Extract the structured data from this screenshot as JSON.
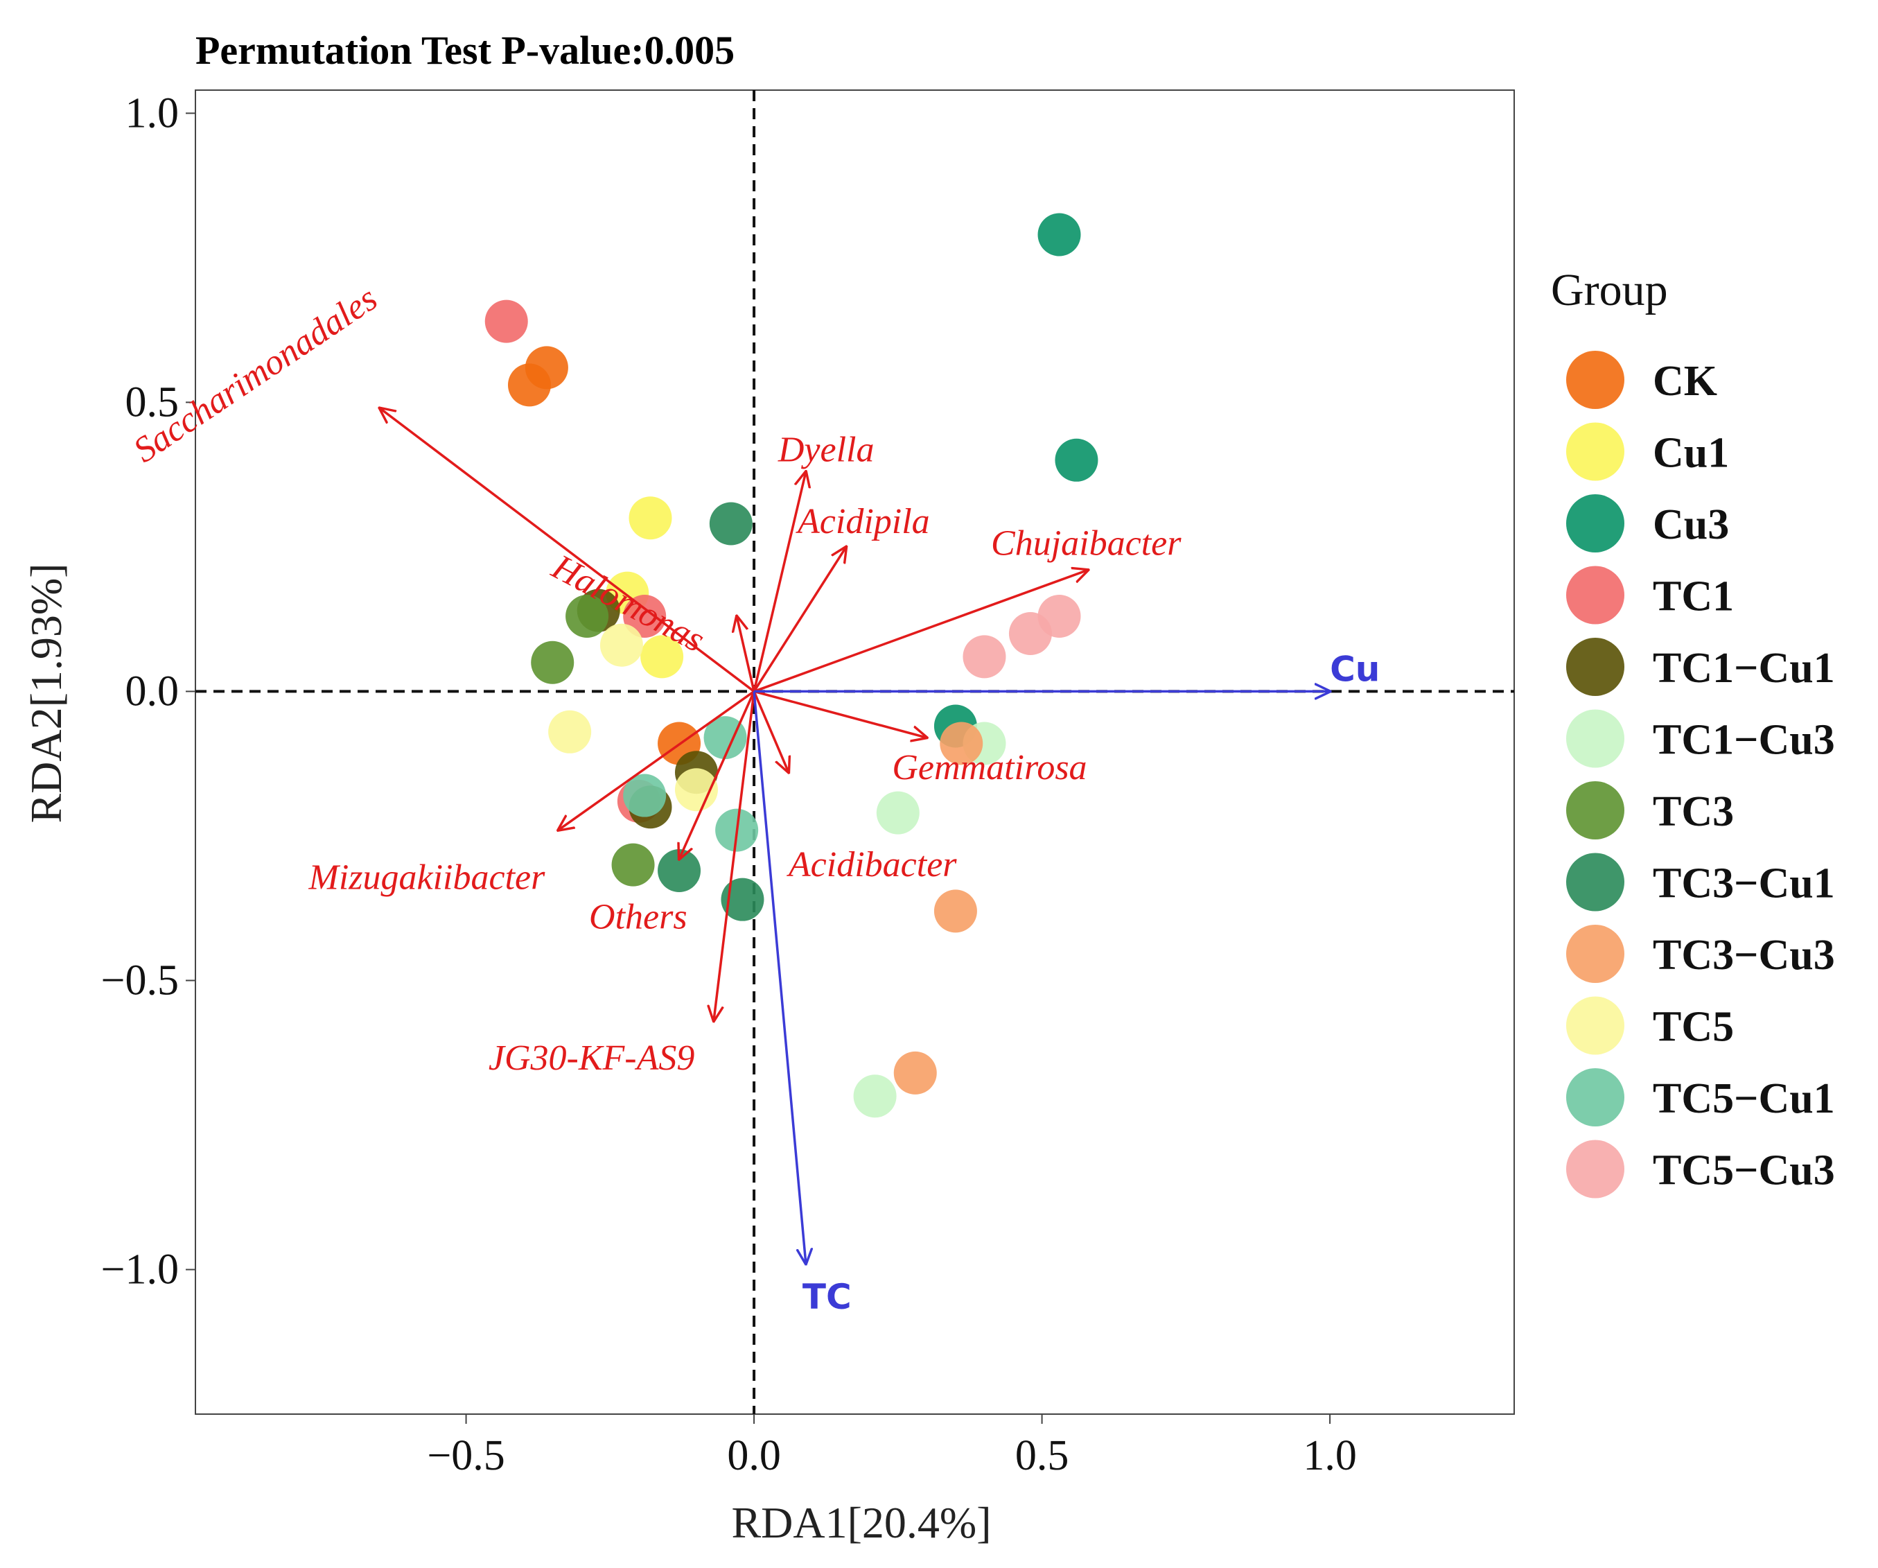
{
  "chart_data": {
    "type": "scatter",
    "title": "Permutation Test P-value:0.005",
    "xlabel": "RDA1[20.4%]",
    "ylabel": "RDA2[1.93%]",
    "xlim": [
      -0.97,
      1.32
    ],
    "ylim": [
      -1.25,
      1.04
    ],
    "xticks": [
      -0.5,
      0.0,
      0.5,
      1.0
    ],
    "yticks": [
      -1.0,
      -0.5,
      0.0,
      0.5,
      1.0
    ],
    "xtick_labels": [
      "−0.5",
      "0.0",
      "0.5",
      "1.0"
    ],
    "ytick_labels": [
      "−1.0",
      "−0.5",
      "0.0",
      "0.5",
      "1.0"
    ],
    "legend_title": "Group",
    "groups": [
      {
        "name": "CK",
        "color": "#f26b0f"
      },
      {
        "name": "Cu1",
        "color": "#fbf55a"
      },
      {
        "name": "Cu3",
        "color": "#0a9468"
      },
      {
        "name": "TC1",
        "color": "#f26a6a"
      },
      {
        "name": "TC1−Cu1",
        "color": "#5a5206"
      },
      {
        "name": "TC1−Cu3",
        "color": "#c8f5c5"
      },
      {
        "name": "TC3",
        "color": "#5e9431"
      },
      {
        "name": "TC3−Cu1",
        "color": "#2a8b5a"
      },
      {
        "name": "TC3−Cu3",
        "color": "#f7a066"
      },
      {
        "name": "TC5",
        "color": "#fbf79a"
      },
      {
        "name": "TC5−Cu1",
        "color": "#6fc8a2"
      },
      {
        "name": "TC5−Cu3",
        "color": "#f7a8a8"
      }
    ],
    "points": [
      {
        "group": "CK",
        "x": -0.39,
        "y": 0.53
      },
      {
        "group": "CK",
        "x": -0.36,
        "y": 0.56
      },
      {
        "group": "CK",
        "x": -0.13,
        "y": -0.09
      },
      {
        "group": "Cu1",
        "x": -0.18,
        "y": 0.3
      },
      {
        "group": "Cu1",
        "x": -0.22,
        "y": 0.17
      },
      {
        "group": "Cu1",
        "x": -0.16,
        "y": 0.06
      },
      {
        "group": "Cu3",
        "x": 0.53,
        "y": 0.79
      },
      {
        "group": "Cu3",
        "x": 0.56,
        "y": 0.4
      },
      {
        "group": "Cu3",
        "x": 0.35,
        "y": -0.06
      },
      {
        "group": "TC1",
        "x": -0.43,
        "y": 0.64
      },
      {
        "group": "TC1",
        "x": -0.19,
        "y": 0.13
      },
      {
        "group": "TC1",
        "x": -0.2,
        "y": -0.19
      },
      {
        "group": "TC1−Cu1",
        "x": -0.27,
        "y": 0.14
      },
      {
        "group": "TC1−Cu1",
        "x": -0.1,
        "y": -0.14
      },
      {
        "group": "TC1−Cu1",
        "x": -0.18,
        "y": -0.2
      },
      {
        "group": "TC1−Cu3",
        "x": 0.4,
        "y": -0.09
      },
      {
        "group": "TC1−Cu3",
        "x": 0.25,
        "y": -0.21
      },
      {
        "group": "TC1−Cu3",
        "x": 0.21,
        "y": -0.7
      },
      {
        "group": "TC3",
        "x": -0.35,
        "y": 0.05
      },
      {
        "group": "TC3",
        "x": -0.29,
        "y": 0.13
      },
      {
        "group": "TC3",
        "x": -0.21,
        "y": -0.3
      },
      {
        "group": "TC3−Cu1",
        "x": -0.04,
        "y": 0.29
      },
      {
        "group": "TC3−Cu1",
        "x": -0.13,
        "y": -0.31
      },
      {
        "group": "TC3−Cu1",
        "x": -0.02,
        "y": -0.36
      },
      {
        "group": "TC3−Cu3",
        "x": 0.36,
        "y": -0.09
      },
      {
        "group": "TC3−Cu3",
        "x": 0.35,
        "y": -0.38
      },
      {
        "group": "TC3−Cu3",
        "x": 0.28,
        "y": -0.66
      },
      {
        "group": "TC5",
        "x": -0.23,
        "y": 0.08
      },
      {
        "group": "TC5",
        "x": -0.32,
        "y": -0.07
      },
      {
        "group": "TC5",
        "x": -0.1,
        "y": -0.17
      },
      {
        "group": "TC5−Cu1",
        "x": -0.05,
        "y": -0.08
      },
      {
        "group": "TC5−Cu1",
        "x": -0.19,
        "y": -0.18
      },
      {
        "group": "TC5−Cu1",
        "x": -0.03,
        "y": -0.24
      },
      {
        "group": "TC5−Cu3",
        "x": 0.4,
        "y": 0.06
      },
      {
        "group": "TC5−Cu3",
        "x": 0.48,
        "y": 0.1
      },
      {
        "group": "TC5−Cu3",
        "x": 0.53,
        "y": 0.13
      }
    ],
    "species_arrows": [
      {
        "name": "Saccharimonadales",
        "x": -0.65,
        "y": 0.49
      },
      {
        "name": "Halomonas",
        "x": -0.03,
        "y": 0.13
      },
      {
        "name": "Dyella",
        "x": 0.09,
        "y": 0.38
      },
      {
        "name": "Acidipila",
        "x": 0.16,
        "y": 0.25
      },
      {
        "name": "Chujaibacter",
        "x": 0.58,
        "y": 0.21
      },
      {
        "name": "Gemmatirosa",
        "x": 0.3,
        "y": -0.08
      },
      {
        "name": "Acidibacter",
        "x": 0.06,
        "y": -0.14
      },
      {
        "name": "Mizugakiibacter",
        "x": -0.34,
        "y": -0.24
      },
      {
        "name": "Others",
        "x": -0.13,
        "y": -0.29
      },
      {
        "name": "JG30-KF-AS9",
        "x": -0.07,
        "y": -0.57
      }
    ],
    "env_arrows": [
      {
        "name": "Cu",
        "x": 1.0,
        "y": 0.0
      },
      {
        "name": "TC",
        "x": 0.09,
        "y": -0.99
      }
    ]
  }
}
